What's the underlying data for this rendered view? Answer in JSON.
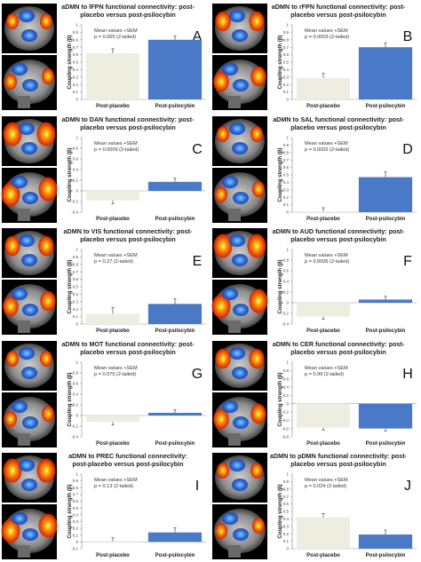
{
  "chart_data": [
    {
      "type": "bar",
      "panel_letter": "A",
      "title_line1": "aDMN to lFPN functional connectivity: post-",
      "title_line2": "placebo versus post-psilocybin",
      "stats_line1": "Mean values +SEM",
      "stats_line2": "p = 0.065 (2-tailed)",
      "ylabel": "Coupling strength (β)",
      "categories": [
        "Post-placebo",
        "Post-psilocybin"
      ],
      "values": [
        0.62,
        0.8
      ],
      "errors": [
        0.06,
        0.05
      ],
      "ylim": [
        0,
        1
      ],
      "yticks": [
        "0",
        "0.1",
        "0.2",
        "0.3",
        "0.4",
        "0.5",
        "0.6",
        "0.7",
        "0.8",
        "0.9",
        "1"
      ],
      "ytick_values": [
        0,
        0.1,
        0.2,
        0.3,
        0.4,
        0.5,
        0.6,
        0.7,
        0.8,
        0.9,
        1
      ]
    },
    {
      "type": "bar",
      "panel_letter": "B",
      "title_line1": "aDMN to rFPN functional connectivity: post-",
      "title_line2": "placebo versus post-psilocybin",
      "stats_line1": "Mean values +SEM",
      "stats_line2": "p = 0.0003 (2-tailed)",
      "ylabel": "Coupling strength (β)",
      "categories": [
        "Post-placebo",
        "Post-psilocybin"
      ],
      "values": [
        0.29,
        0.7
      ],
      "errors": [
        0.06,
        0.06
      ],
      "ylim": [
        0,
        1
      ],
      "yticks": [
        "0",
        "0.1",
        "0.2",
        "0.3",
        "0.4",
        "0.5",
        "0.6",
        "0.7",
        "0.8",
        "0.9",
        "1"
      ],
      "ytick_values": [
        0,
        0.1,
        0.2,
        0.3,
        0.4,
        0.5,
        0.6,
        0.7,
        0.8,
        0.9,
        1
      ]
    },
    {
      "type": "bar",
      "panel_letter": "C",
      "title_line1": "aDMN to DAN functional connectivity: post-",
      "title_line2": "placebo versus post-psilocybin",
      "stats_line1": "Mean values +SEM",
      "stats_line2": "p = 0.0009 (2-tailed)",
      "ylabel": "Coupling strength (β)",
      "categories": [
        "Post-placebo",
        "Post-psilocybin"
      ],
      "values": [
        -0.18,
        0.17
      ],
      "errors": [
        0.06,
        0.07
      ],
      "ylim": [
        -0.4,
        1
      ],
      "yticks": [
        "-0.4",
        "-0.2",
        "0",
        "0.2",
        "0.4",
        "0.6",
        "0.8",
        "1"
      ],
      "ytick_values": [
        -0.4,
        -0.2,
        0,
        0.2,
        0.4,
        0.6,
        0.8,
        1
      ]
    },
    {
      "type": "bar",
      "panel_letter": "D",
      "title_line1": "aDMN to SAL functional connectivity: post-",
      "title_line2": "placebo versus post-psilocybin",
      "stats_line1": "Mean values +SEM",
      "stats_line2": "p = 0.0002 (2-tailed)",
      "ylabel": "Coupling strength (β)",
      "categories": [
        "Post-placebo",
        "Post-psilocybin"
      ],
      "values": [
        0.01,
        0.47
      ],
      "errors": [
        0.05,
        0.07
      ],
      "ylim": [
        0,
        1
      ],
      "yticks": [
        "0",
        "0.1",
        "0.2",
        "0.3",
        "0.4",
        "0.5",
        "0.6",
        "0.7",
        "0.8",
        "0.9",
        "1"
      ],
      "ytick_values": [
        0,
        0.1,
        0.2,
        0.3,
        0.4,
        0.5,
        0.6,
        0.7,
        0.8,
        0.9,
        1
      ]
    },
    {
      "type": "bar",
      "panel_letter": "E",
      "title_line1": "aDMN to VIS functional connectivity: post-",
      "title_line2": "placebo versus post-psilocybin",
      "stats_line1": "Mean values +SEM",
      "stats_line2": "p = 0.27 (2-tailed)",
      "ylabel": "Coupling strength (β)",
      "categories": [
        "Post-placebo",
        "Post-psilocybin"
      ],
      "values": [
        0.14,
        0.27
      ],
      "errors": [
        0.08,
        0.07
      ],
      "ylim": [
        0,
        1
      ],
      "yticks": [
        "0",
        "0.1",
        "0.2",
        "0.3",
        "0.4",
        "0.5",
        "0.6",
        "0.7",
        "0.8",
        "0.9",
        "1"
      ],
      "ytick_values": [
        0,
        0.1,
        0.2,
        0.3,
        0.4,
        0.5,
        0.6,
        0.7,
        0.8,
        0.9,
        1
      ]
    },
    {
      "type": "bar",
      "panel_letter": "F",
      "title_line1": "aDMN to AUD functional connectivity: post-",
      "title_line2": "placebo versus post-psilocybin",
      "stats_line1": "Mean values +SEM",
      "stats_line2": "p = 0.0006 (2-tailed)",
      "ylabel": "Coupling strength (β)",
      "categories": [
        "Post-placebo",
        "Post-psilocybin"
      ],
      "values": [
        -0.26,
        0.06
      ],
      "errors": [
        0.05,
        0.06
      ],
      "ylim": [
        -0.4,
        1
      ],
      "yticks": [
        "-0.4",
        "-0.2",
        "0",
        "0.2",
        "0.4",
        "0.6",
        "0.8",
        "1"
      ],
      "ytick_values": [
        -0.4,
        -0.2,
        0,
        0.2,
        0.4,
        0.6,
        0.8,
        1
      ]
    },
    {
      "type": "bar",
      "panel_letter": "G",
      "title_line1": "aDMN to MOT functional connectivity: post-",
      "title_line2": "placebo versus post-psilocybin",
      "stats_line1": "Mean values +SEM",
      "stats_line2": "p = 0.075 (2-tailed)",
      "ylabel": "Coupling strength (β)",
      "categories": [
        "Post-placebo",
        "Post-psilocybin"
      ],
      "values": [
        -0.12,
        0.05
      ],
      "errors": [
        0.06,
        0.06
      ],
      "ylim": [
        -0.4,
        1
      ],
      "yticks": [
        "-0.4",
        "-0.2",
        "0",
        "0.2",
        "0.4",
        "0.6",
        "0.8",
        "1"
      ],
      "ytick_values": [
        -0.4,
        -0.2,
        0,
        0.2,
        0.4,
        0.6,
        0.8,
        1
      ]
    },
    {
      "type": "bar",
      "panel_letter": "H",
      "title_line1": "aDMN to CER functional connectivity: post-",
      "title_line2": "placebo versus post-psilocybin",
      "stats_line1": "Mean values +SEM",
      "stats_line2": "p = 0.99 (2-tailed)",
      "ylabel": "Coupling strength (β)",
      "categories": [
        "Post-placebo",
        "Post-psilocybin"
      ],
      "values": [
        -0.58,
        -0.6
      ],
      "errors": [
        0.06,
        0.06
      ],
      "ylim": [
        -0.8,
        1
      ],
      "yticks": [
        "-0.8",
        "-0.6",
        "-0.4",
        "-0.2",
        "0",
        "0.2",
        "0.4",
        "0.6",
        "0.8",
        "1"
      ],
      "ytick_values": [
        -0.8,
        -0.6,
        -0.4,
        -0.2,
        0,
        0.2,
        0.4,
        0.6,
        0.8,
        1
      ]
    },
    {
      "type": "bar",
      "panel_letter": "I",
      "title_line1": "aDMN to PREC functional connectivity:",
      "title_line2": "post-placebo versus post-psilocybin",
      "stats_line1": "Mean values +SEM",
      "stats_line2": "p = 0.13 (2-tailed)",
      "ylabel": "Coupling strength (β)",
      "categories": [
        "Post-placebo",
        "Post-psilocybin"
      ],
      "values": [
        0.01,
        0.14
      ],
      "errors": [
        0.05,
        0.07
      ],
      "ylim": [
        -0.1,
        1
      ],
      "yticks": [
        "-0.1",
        "0",
        "0.1",
        "0.2",
        "0.3",
        "0.4",
        "0.5",
        "0.6",
        "0.7",
        "0.8",
        "0.9",
        "1"
      ],
      "ytick_values": [
        -0.1,
        0,
        0.1,
        0.2,
        0.3,
        0.4,
        0.5,
        0.6,
        0.7,
        0.8,
        0.9,
        1
      ]
    },
    {
      "type": "bar",
      "panel_letter": "J",
      "title_line1": "aDMN to pDMN functional connectivity: post-",
      "title_line2": "placebo versus post-psilocybin",
      "stats_line1": "Mean values +SEM",
      "stats_line2": "p = 0.024 (2-tailed)",
      "ylabel": "Coupling strength (β)",
      "categories": [
        "Post-placebo",
        "Post-psilocybin"
      ],
      "values": [
        0.42,
        0.19
      ],
      "errors": [
        0.05,
        0.06
      ],
      "ylim": [
        0,
        1
      ],
      "yticks": [
        "0",
        "0.1",
        "0.2",
        "0.3",
        "0.4",
        "0.5",
        "0.6",
        "0.7",
        "0.8",
        "0.9",
        "1"
      ],
      "ytick_values": [
        0,
        0.1,
        0.2,
        0.3,
        0.4,
        0.5,
        0.6,
        0.7,
        0.8,
        0.9,
        1
      ]
    }
  ],
  "colors": {
    "placebo": "#eeeee0",
    "psilocybin": "#4a79c8",
    "error": "#444444"
  }
}
